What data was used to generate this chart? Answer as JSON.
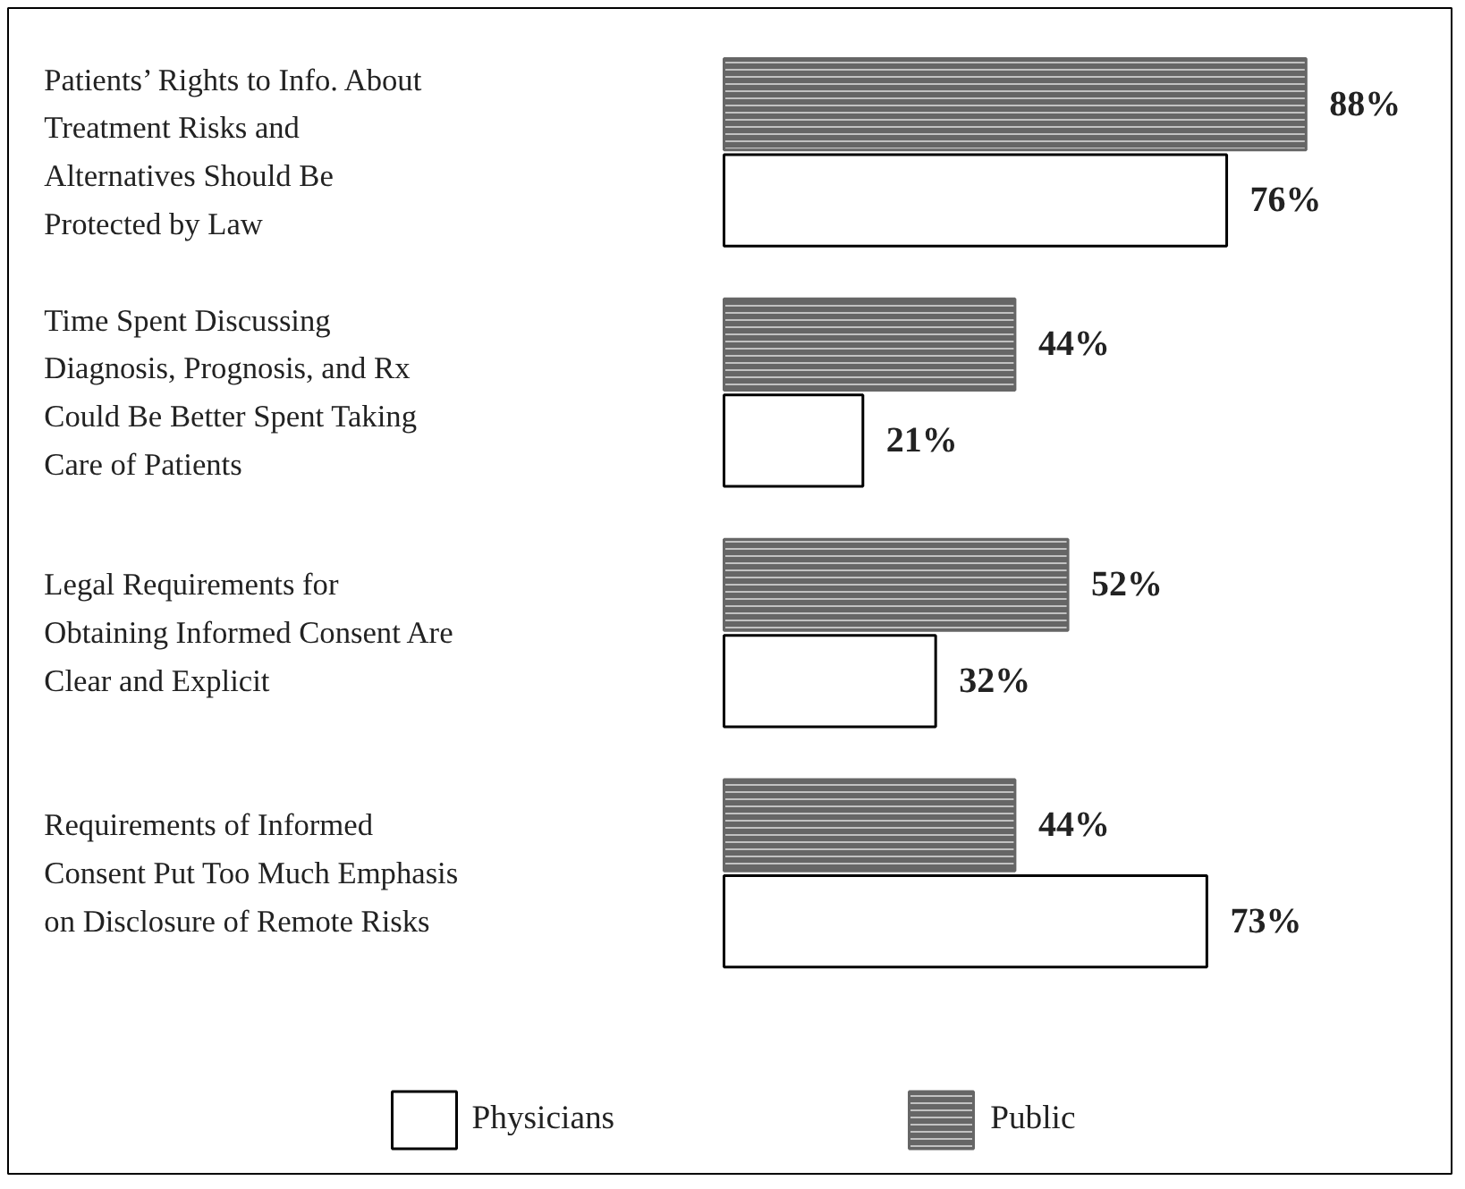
{
  "chart_data": {
    "type": "bar",
    "orientation": "horizontal",
    "categories": [
      "Patients’ Rights to Info. About Treatment Risks and Alternatives Should Be Protected by Law",
      "Time Spent Discussing Diagnosis, Prognosis, and Rx Could Be Better Spent Taking Care of Patients",
      "Legal Requirements for Obtaining Informed Consent Are Clear and Explicit",
      "Requirements of Informed Consent Put Too Much Emphasis on Disclosure of Remote Risks"
    ],
    "series": [
      {
        "name": "Public",
        "color": "#666666",
        "values": [
          88,
          44,
          52,
          44
        ],
        "value_labels": [
          "88%",
          "44%",
          "52%",
          "44%"
        ]
      },
      {
        "name": "Physicians",
        "color": "#ffffff",
        "values": [
          76,
          21,
          32,
          73
        ],
        "value_labels": [
          "76%",
          "21%",
          "32%",
          "73%"
        ]
      }
    ],
    "tick_labels": false,
    "legend": "bottom"
  }
}
